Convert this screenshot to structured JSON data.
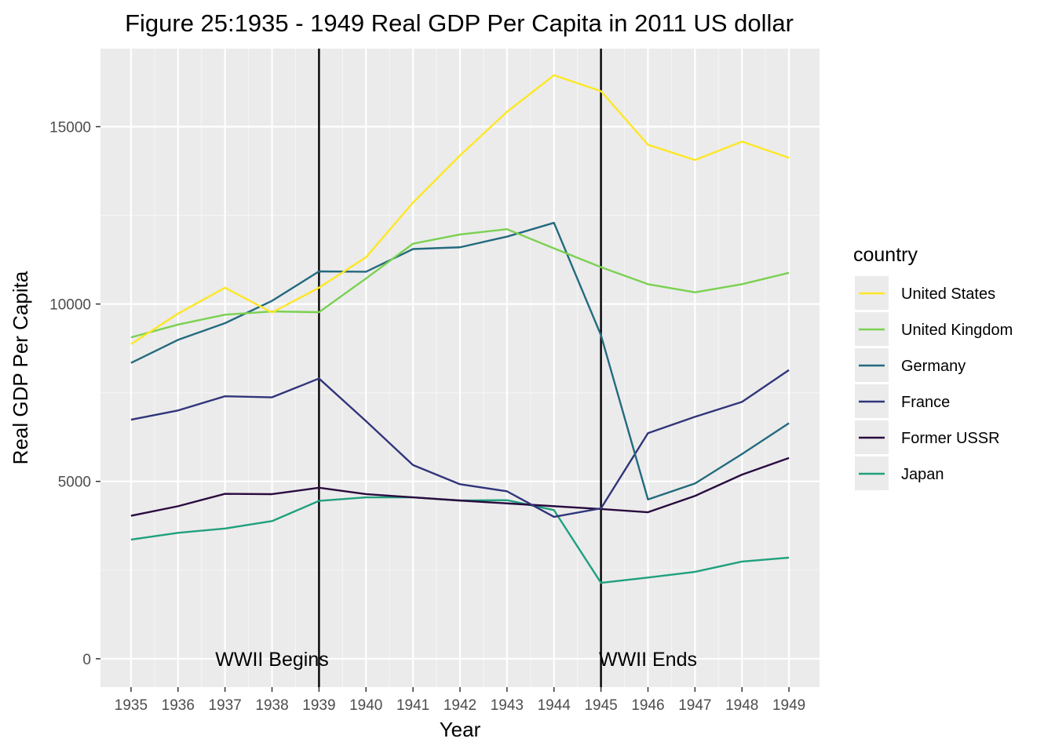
{
  "chart_data": {
    "type": "line",
    "title": "Figure 25:1935 - 1949 Real GDP Per Capita in 2011 US dollar",
    "xlabel": "Year",
    "ylabel": "Real GDP Per Capita",
    "x": [
      1935,
      1936,
      1937,
      1938,
      1939,
      1940,
      1941,
      1942,
      1943,
      1944,
      1945,
      1946,
      1947,
      1948,
      1949
    ],
    "xlim": [
      1934.35,
      1949.65
    ],
    "ylim": [
      -800,
      17200
    ],
    "y_ticks": [
      0,
      5000,
      10000,
      15000
    ],
    "grid": true,
    "legend": {
      "title": "country",
      "position": "right"
    },
    "series": [
      {
        "name": "United States",
        "color": "#FDE725",
        "values": [
          8870,
          9730,
          10460,
          9760,
          10460,
          11320,
          12860,
          14190,
          15420,
          16450,
          16000,
          14490,
          14060,
          14580,
          14120
        ]
      },
      {
        "name": "United Kingdom",
        "color": "#7AD151",
        "values": [
          9060,
          9420,
          9700,
          9790,
          9770,
          10720,
          11700,
          11960,
          12110,
          11570,
          11040,
          10560,
          10330,
          10560,
          10880
        ]
      },
      {
        "name": "Germany",
        "color": "#22A884",
        "values": [
          8340,
          8990,
          9460,
          10090,
          10920,
          10910,
          11550,
          11600,
          11900,
          12290,
          9120,
          4490,
          4940,
          5770,
          6640
        ]
      },
      {
        "name": "France",
        "color": "#2A788E",
        "values": [
          6740,
          7000,
          7400,
          7370,
          7900,
          6700,
          5460,
          4920,
          4720,
          4000,
          4240,
          6360,
          6820,
          7240,
          8140
        ]
      },
      {
        "name": "Former USSR",
        "color": "#414487",
        "values": [
          4030,
          4300,
          4650,
          4640,
          4820,
          4640,
          4550,
          4460,
          4380,
          4300,
          4220,
          4130,
          4590,
          5190,
          5660
        ]
      },
      {
        "name": "Japan",
        "color": "#440154",
        "values": [
          3360,
          3550,
          3670,
          3880,
          4450,
          4550,
          4550,
          4460,
          4470,
          4190,
          2140,
          2290,
          2450,
          2740,
          2850
        ]
      }
    ],
    "series_colors_visible": [
      "#FDE725",
      "#7AD151",
      "#236A7E",
      "#31357A",
      "#2A0B3F",
      "#20A07E"
    ],
    "vlines": [
      {
        "x": 1939,
        "label": "WWII Begins",
        "label_x": 1938
      },
      {
        "x": 1945,
        "label": "WWII Ends",
        "label_x": 1946
      }
    ]
  }
}
